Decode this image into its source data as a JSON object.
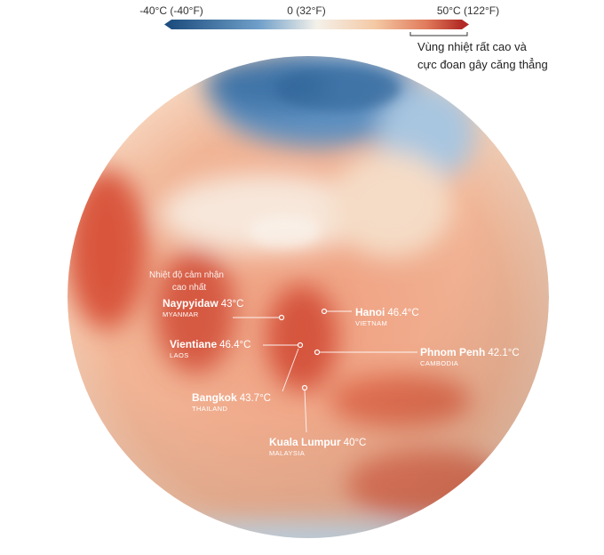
{
  "legend": {
    "labels": [
      "-40°C (-40°F)",
      "0 (32°F)",
      "50°C (122°F)"
    ],
    "note": [
      "Vùng nhiệt rất cao và",
      "cực đoan gây căng thẳng"
    ]
  },
  "annotation": [
    "Nhiệt độ cảm nhận",
    "cao nhất"
  ],
  "cities": [
    {
      "name": "Naypyidaw",
      "temp": "43°C",
      "country": "MYANMAR"
    },
    {
      "name": "Hanoi",
      "temp": "46.4°C",
      "country": "VIETNAM"
    },
    {
      "name": "Vientiane",
      "temp": "46.4°C",
      "country": "LAOS"
    },
    {
      "name": "Phnom Penh",
      "temp": "42.1°C",
      "country": "CAMBODIA"
    },
    {
      "name": "Bangkok",
      "temp": "43.7°C",
      "country": "THAILAND"
    },
    {
      "name": "Kuala Lumpur",
      "temp": "40°C",
      "country": "MALAYSIA"
    }
  ]
}
